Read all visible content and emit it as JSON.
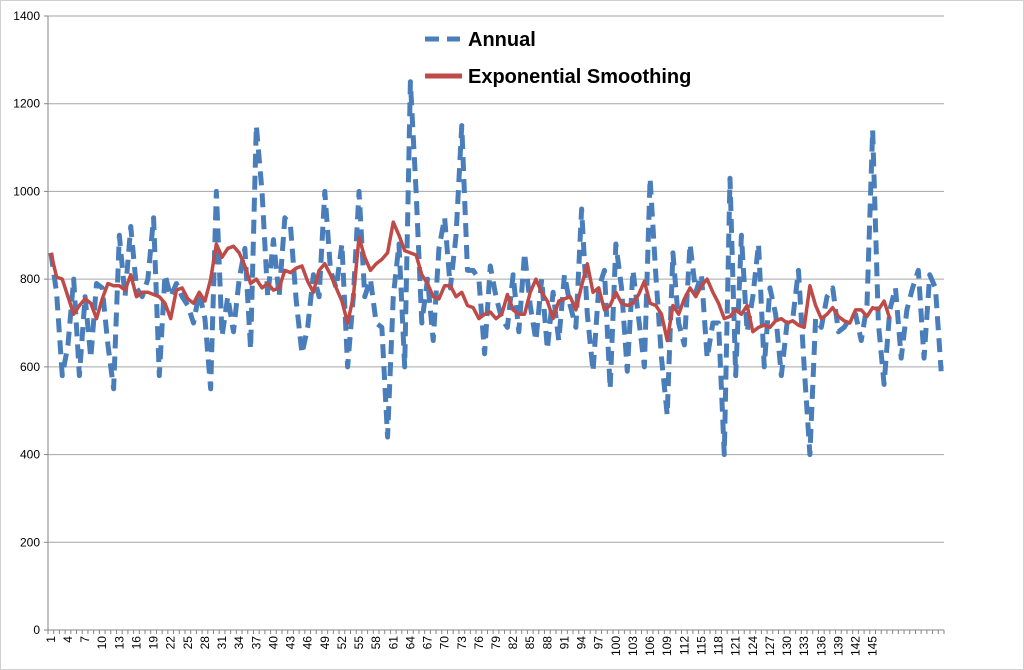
{
  "chart_data": {
    "type": "line",
    "title": "",
    "xlabel": "",
    "ylabel": "",
    "ylim": [
      0,
      1400
    ],
    "yticks": [
      0,
      200,
      400,
      600,
      800,
      1000,
      1200,
      1400
    ],
    "xlim": [
      1,
      147
    ],
    "xtick_labels": [
      "1",
      "4",
      "7",
      "10",
      "13",
      "16",
      "19",
      "22",
      "25",
      "28",
      "31",
      "34",
      "37",
      "40",
      "43",
      "46",
      "49",
      "52",
      "55",
      "58",
      "61",
      "64",
      "67",
      "70",
      "73",
      "76",
      "79",
      "82",
      "85",
      "88",
      "91",
      "94",
      "97",
      "100",
      "103",
      "106",
      "109",
      "112",
      "115",
      "118",
      "121",
      "124",
      "127",
      "130",
      "133",
      "136",
      "139",
      "142",
      "145"
    ],
    "grid": true,
    "legend_position": "top-center",
    "series": [
      {
        "name": "Annual",
        "color": "#4a7ebb",
        "style": "dashed",
        "values": [
          860,
          770,
          580,
          650,
          800,
          580,
          760,
          620,
          790,
          780,
          650,
          550,
          900,
          760,
          920,
          780,
          760,
          800,
          940,
          580,
          810,
          760,
          790,
          760,
          740,
          700,
          770,
          710,
          550,
          1000,
          670,
          760,
          680,
          800,
          870,
          640,
          1150,
          1000,
          760,
          890,
          760,
          940,
          920,
          750,
          630,
          690,
          810,
          760,
          1000,
          820,
          780,
          880,
          600,
          760,
          1000,
          760,
          800,
          700,
          690,
          440,
          760,
          880,
          600,
          1250,
          1000,
          700,
          800,
          660,
          870,
          940,
          780,
          900,
          1150,
          820,
          820,
          800,
          630,
          830,
          760,
          710,
          690,
          810,
          680,
          860,
          740,
          660,
          800,
          640,
          770,
          660,
          810,
          740,
          690,
          960,
          720,
          590,
          780,
          820,
          550,
          880,
          780,
          590,
          820,
          710,
          600,
          1030,
          810,
          620,
          490,
          860,
          700,
          650,
          880,
          770,
          810,
          620,
          700,
          700,
          400,
          1030,
          580,
          900,
          680,
          760,
          880,
          600,
          780,
          720,
          580,
          700,
          710,
          820,
          600,
          400,
          710,
          690,
          760,
          780,
          680,
          690,
          710,
          720,
          660,
          740,
          1140,
          700,
          560,
          730,
          780,
          620,
          730,
          780,
          820,
          620,
          810,
          780,
          590
        ]
      },
      {
        "name": "Exponential Smoothing",
        "color": "#be4b48",
        "style": "solid",
        "values": [
          860,
          805,
          800,
          760,
          720,
          740,
          755,
          745,
          710,
          755,
          790,
          785,
          785,
          775,
          810,
          760,
          770,
          770,
          765,
          760,
          745,
          710,
          775,
          780,
          755,
          745,
          770,
          750,
          800,
          880,
          850,
          870,
          875,
          860,
          830,
          790,
          800,
          780,
          790,
          775,
          780,
          820,
          815,
          825,
          830,
          795,
          770,
          820,
          835,
          810,
          780,
          750,
          700,
          760,
          895,
          850,
          820,
          835,
          845,
          860,
          930,
          900,
          865,
          860,
          855,
          810,
          790,
          760,
          755,
          785,
          785,
          760,
          770,
          740,
          735,
          710,
          720,
          725,
          710,
          720,
          765,
          730,
          720,
          720,
          770,
          800,
          770,
          750,
          710,
          750,
          755,
          760,
          730,
          785,
          835,
          770,
          780,
          730,
          740,
          770,
          745,
          740,
          745,
          765,
          795,
          745,
          740,
          720,
          660,
          740,
          720,
          755,
          780,
          760,
          785,
          800,
          770,
          745,
          710,
          715,
          730,
          720,
          740,
          680,
          690,
          695,
          690,
          705,
          710,
          700,
          705,
          695,
          690,
          785,
          740,
          710,
          720,
          735,
          715,
          705,
          700,
          730,
          730,
          715,
          735,
          730,
          750,
          710
        ]
      }
    ]
  }
}
